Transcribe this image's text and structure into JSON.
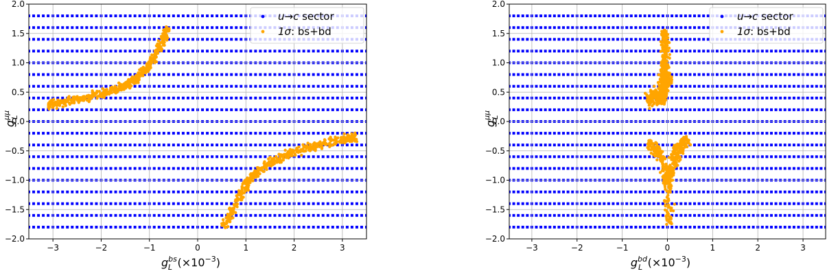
{
  "chart_data": [
    {
      "type": "scatter",
      "xlabel": {
        "base": "g",
        "sub": "L",
        "sup": "bs",
        "suffix": "(×10",
        "exp": "−3",
        "close": ")"
      },
      "ylabel": {
        "base": "g",
        "sub": "L",
        "sup": "μμ"
      },
      "xlim": [
        -3.5,
        3.5
      ],
      "ylim": [
        -2.0,
        2.0
      ],
      "xticks": [
        -3,
        -2,
        -1,
        0,
        1,
        2,
        3
      ],
      "xtick_labels": [
        "−3",
        "−2",
        "−1",
        "0",
        "1",
        "2",
        "3"
      ],
      "yticks": [
        -2.0,
        -1.5,
        -1.0,
        -0.5,
        0.0,
        0.5,
        1.0,
        1.5,
        2.0
      ],
      "ytick_labels": [
        "−2.0",
        "−1.5",
        "−1.0",
        "−0.5",
        "0.0",
        "0.5",
        "1.0",
        "1.5",
        "2.0"
      ],
      "grid": true,
      "legend_position": "top-right",
      "series": [
        {
          "name": "u→c sector",
          "name_parts": [
            "u→c",
            " sector"
          ],
          "color": "#0000ff",
          "grid_x_range": [
            -3.5,
            3.5
          ],
          "grid_x_step": 0.1,
          "grid_y_values": [
            -1.8,
            -1.6,
            -1.4,
            -1.2,
            -1.0,
            -0.8,
            -0.6,
            -0.4,
            -0.2,
            0.0,
            0.2,
            0.4,
            0.6,
            0.8,
            1.0,
            1.2,
            1.4,
            1.6,
            1.8
          ]
        },
        {
          "name": "1σ: bs+bd",
          "name_parts": [
            "1σ",
            ": bs+bd"
          ],
          "color": "#ffa500",
          "clusters": [
            {
              "spine": [
                [
                  -3.1,
                  0.28
                ],
                [
                  -2.6,
                  0.36
                ],
                [
                  -2.0,
                  0.46
                ],
                [
                  -1.5,
                  0.6
                ],
                [
                  -1.2,
                  0.78
                ],
                [
                  -0.9,
                  1.1
                ],
                [
                  -0.6,
                  1.6
                ]
              ],
              "width": 0.05,
              "count": 450
            },
            {
              "spine": [
                [
                  0.55,
                  -1.8
                ],
                [
                  0.8,
                  -1.4
                ],
                [
                  1.1,
                  -0.95
                ],
                [
                  1.5,
                  -0.7
                ],
                [
                  2.0,
                  -0.52
                ],
                [
                  2.5,
                  -0.4
                ],
                [
                  3.0,
                  -0.3
                ],
                [
                  3.3,
                  -0.28
                ]
              ],
              "width": 0.05,
              "count": 450
            }
          ]
        }
      ]
    },
    {
      "type": "scatter",
      "xlabel": {
        "base": "g",
        "sub": "L",
        "sup": "bd",
        "suffix": "(×10",
        "exp": "−3",
        "close": ")"
      },
      "ylabel": {
        "base": "g",
        "sub": "L",
        "sup": "μμ"
      },
      "xlim": [
        -3.5,
        3.5
      ],
      "ylim": [
        -2.0,
        2.0
      ],
      "xticks": [
        -3,
        -2,
        -1,
        0,
        1,
        2,
        3
      ],
      "xtick_labels": [
        "−3",
        "−2",
        "−1",
        "0",
        "1",
        "2",
        "3"
      ],
      "yticks": [
        -2.0,
        -1.5,
        -1.0,
        -0.5,
        0.0,
        0.5,
        1.0,
        1.5,
        2.0
      ],
      "ytick_labels": [
        "−2.0",
        "−1.5",
        "−1.0",
        "−0.5",
        "0.0",
        "0.5",
        "1.0",
        "1.5",
        "2.0"
      ],
      "grid": true,
      "legend_position": "top-right",
      "series": [
        {
          "name": "u→c sector",
          "name_parts": [
            "u→c",
            " sector"
          ],
          "color": "#0000ff",
          "grid_x_range": [
            -3.5,
            3.5
          ],
          "grid_x_step": 0.1,
          "grid_y_values": [
            -1.8,
            -1.6,
            -1.4,
            -1.2,
            -1.0,
            -0.8,
            -0.6,
            -0.4,
            -0.2,
            0.0,
            0.2,
            0.4,
            0.6,
            0.8,
            1.0,
            1.2,
            1.4,
            1.6,
            1.8
          ]
        },
        {
          "name": "1σ: bs+bd",
          "name_parts": [
            "1σ",
            ": bs+bd"
          ],
          "color": "#ffa500",
          "clusters": [
            {
              "spine": [
                [
                  -0.1,
                  0.3
                ],
                [
                  -0.08,
                  0.6
                ],
                [
                  -0.06,
                  0.9
                ],
                [
                  -0.05,
                  1.2
                ],
                [
                  -0.07,
                  1.55
                ]
              ],
              "width": 0.07,
              "count": 250
            },
            {
              "spine": [
                [
                  -0.45,
                  0.35
                ],
                [
                  -0.2,
                  0.45
                ],
                [
                  -0.05,
                  0.6
                ],
                [
                  -0.03,
                  0.85
                ]
              ],
              "width": 0.09,
              "count": 250
            },
            {
              "spine": [
                [
                  -0.45,
                  -0.38
                ],
                [
                  -0.2,
                  -0.5
                ],
                [
                  -0.05,
                  -0.8
                ],
                [
                  0.0,
                  -1.2
                ],
                [
                  0.05,
                  -1.75
                ]
              ],
              "width": 0.07,
              "count": 200
            },
            {
              "spine": [
                [
                  0.45,
                  -0.3
                ],
                [
                  0.25,
                  -0.45
                ],
                [
                  0.1,
                  -0.7
                ],
                [
                  0.05,
                  -1.0
                ]
              ],
              "width": 0.08,
              "count": 200
            }
          ]
        }
      ]
    }
  ]
}
